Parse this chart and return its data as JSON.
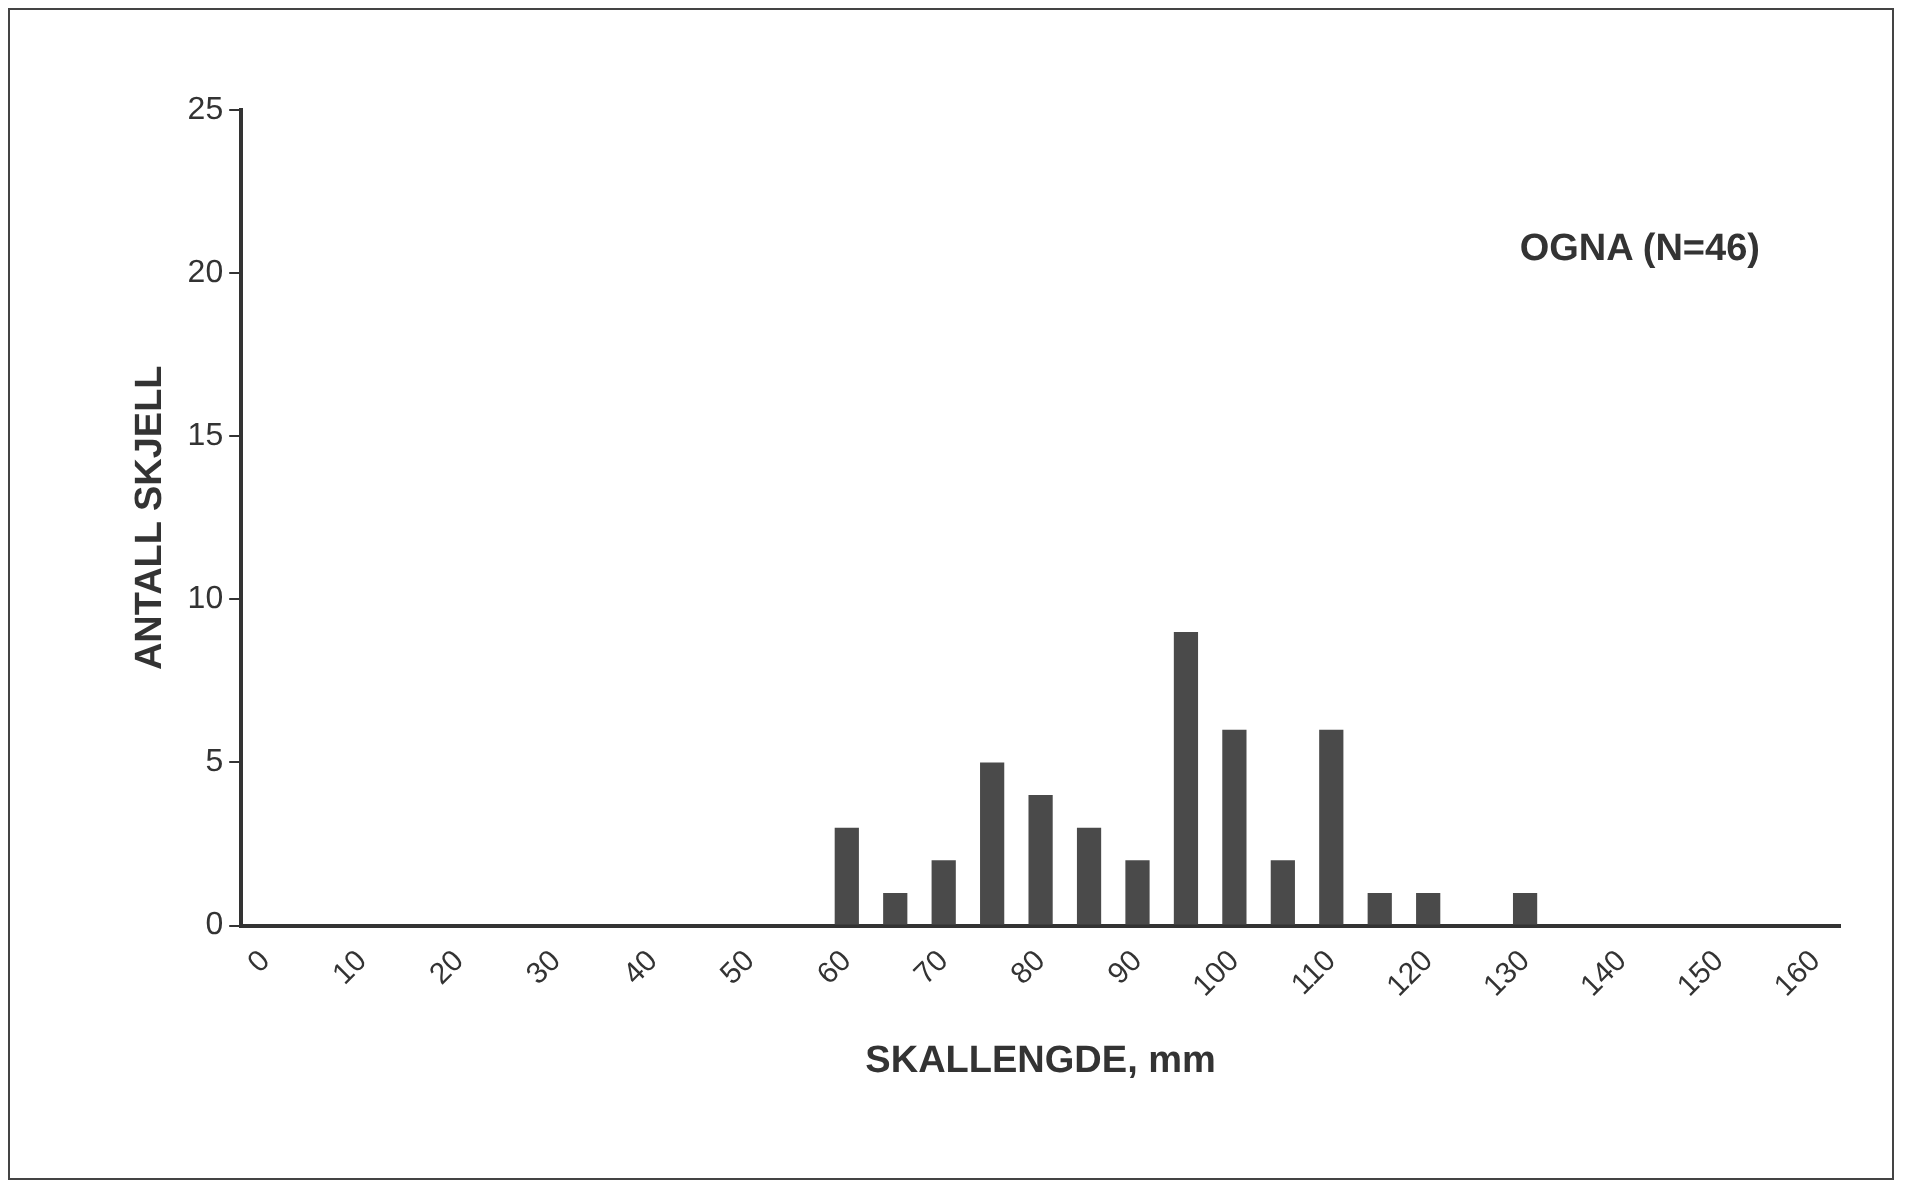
{
  "chart_data": {
    "type": "bar",
    "title": "OGNA (N=46)",
    "xlabel": "SKALLENGDE, mm",
    "ylabel": "ANTALL SKJELL",
    "categories": [
      "0",
      null,
      "10",
      null,
      "20",
      null,
      "30",
      null,
      "40",
      null,
      "50",
      null,
      "60",
      null,
      "70",
      null,
      "80",
      null,
      "90",
      null,
      "100",
      null,
      "110",
      null,
      "120",
      null,
      "130",
      null,
      "140",
      null,
      "150",
      null,
      "160"
    ],
    "values": [
      0,
      0,
      0,
      0,
      0,
      0,
      0,
      0,
      0,
      0,
      0,
      0,
      3,
      1,
      2,
      5,
      4,
      3,
      2,
      9,
      6,
      2,
      6,
      1,
      1,
      0,
      1,
      0,
      0,
      0,
      0,
      0,
      0
    ],
    "color": "#4a4a4a",
    "ylim": [
      0,
      25
    ],
    "yticks": [
      0,
      5,
      10,
      15,
      20,
      25
    ],
    "grid": false,
    "legend": false
  }
}
